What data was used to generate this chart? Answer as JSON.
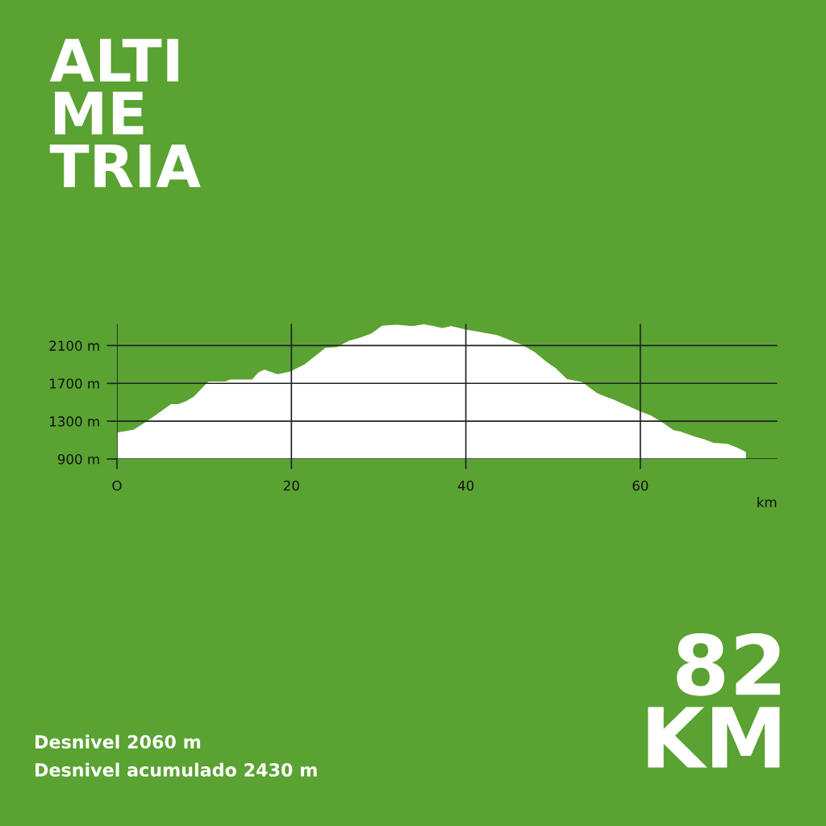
{
  "chart_data": {
    "type": "area",
    "title": "ALTI\nME\nTRIA",
    "xlabel": "km",
    "x": [
      0,
      1.9,
      3.3,
      6.2,
      7.0,
      7.9,
      8.8,
      10.5,
      12.4,
      13.0,
      15.5,
      16.2,
      16.9,
      18.4,
      19.9,
      21.5,
      23.3,
      23.9,
      25.2,
      26.6,
      27.9,
      29.2,
      30.4,
      32.1,
      33.9,
      35.2,
      36.1,
      37.3,
      38.3,
      40.0,
      43.6,
      46.4,
      47.9,
      49.2,
      50.3,
      51.6,
      53.3,
      55.0,
      55.6,
      56.9,
      58.1,
      60.1,
      61.2,
      62.4,
      63.8,
      64.6,
      66.3,
      67.3,
      68.4,
      70.0,
      71.0,
      72.1
    ],
    "series": [
      {
        "color": "#ffffff",
        "values": [
          1180,
          1210,
          1290,
          1480,
          1480,
          1510,
          1560,
          1720,
          1720,
          1740,
          1740,
          1815,
          1845,
          1795,
          1825,
          1900,
          2030,
          2075,
          2085,
          2150,
          2185,
          2230,
          2310,
          2320,
          2305,
          2325,
          2310,
          2285,
          2305,
          2270,
          2210,
          2110,
          2030,
          1930,
          1860,
          1745,
          1715,
          1600,
          1575,
          1530,
          1480,
          1400,
          1360,
          1295,
          1205,
          1190,
          1135,
          1110,
          1070,
          1060,
          1025,
          975
        ]
      }
    ],
    "xlim": [
      0,
      75.7
    ],
    "ylim": [
      900,
      2330
    ],
    "xticks": [
      {
        "value": 0,
        "label": "O"
      },
      20,
      40,
      60
    ],
    "yticks": [
      {
        "value": 900,
        "label": "900 m"
      },
      {
        "value": 1300,
        "label": "1300 m"
      },
      {
        "value": 1700,
        "label": "1700 m"
      },
      {
        "value": 2100,
        "label": "2100 m"
      }
    ],
    "grid": true,
    "annotations": [
      "82\nKM",
      "Desnivel 2060 m",
      "Desnivel acumulado 2430 m"
    ]
  }
}
